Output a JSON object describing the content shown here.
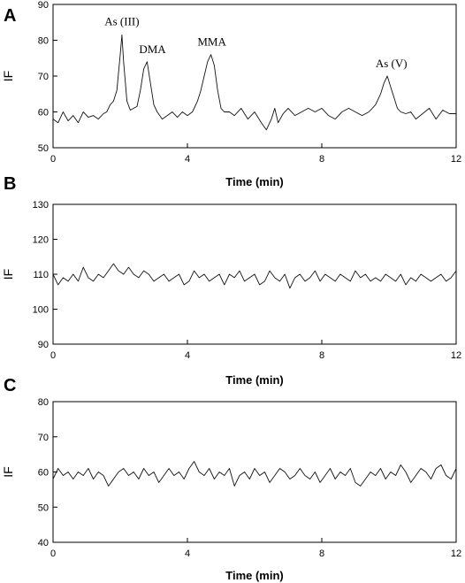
{
  "chart_data": [
    {
      "type": "line",
      "panel": "A",
      "xlabel": "Time (min)",
      "ylabel": "IF",
      "xlim": [
        0,
        12
      ],
      "ylim": [
        50,
        90
      ],
      "xticks": [
        0,
        4,
        8,
        12
      ],
      "yticks": [
        50,
        60,
        70,
        80,
        90
      ],
      "grid": false,
      "annotations": [
        {
          "text": "As (III)",
          "x": 2.05,
          "y": 81.5
        },
        {
          "text": "DMA",
          "x": 2.75,
          "y": 74
        },
        {
          "text": "MMA",
          "x": 4.7,
          "y": 76
        },
        {
          "text": "As (V)",
          "x": 10.15,
          "y": 70
        }
      ],
      "series": [
        {
          "x": [
            0,
            0.15,
            0.3,
            0.45,
            0.6,
            0.75,
            0.9,
            1.05,
            1.2,
            1.35,
            1.5,
            1.6,
            1.7,
            1.8,
            1.9,
            2.0,
            2.05,
            2.1,
            2.2,
            2.3,
            2.4,
            2.5,
            2.6,
            2.7,
            2.8,
            2.9,
            3.0,
            3.1,
            3.25,
            3.4,
            3.55,
            3.7,
            3.85,
            4.0,
            4.15,
            4.3,
            4.4,
            4.5,
            4.6,
            4.7,
            4.8,
            4.9,
            5.0,
            5.1,
            5.25,
            5.4,
            5.6,
            5.8,
            6.0,
            6.2,
            6.35,
            6.5,
            6.6,
            6.7,
            6.85,
            7.0,
            7.2,
            7.4,
            7.6,
            7.8,
            8.0,
            8.2,
            8.4,
            8.6,
            8.8,
            9.0,
            9.2,
            9.4,
            9.6,
            9.75,
            9.85,
            9.95,
            10.05,
            10.15,
            10.25,
            10.35,
            10.5,
            10.65,
            10.8,
            11.0,
            11.2,
            11.4,
            11.6,
            11.8,
            12.0
          ],
          "y": [
            58,
            57,
            60,
            57.5,
            59,
            57,
            60,
            58.5,
            59,
            58,
            59.5,
            60,
            62,
            63,
            66,
            76,
            81.5,
            74,
            63,
            60.5,
            61,
            61.5,
            66,
            72,
            74,
            68,
            62,
            60,
            58,
            59,
            60,
            58.5,
            60,
            59,
            60,
            63,
            66,
            70,
            74,
            76,
            73,
            66,
            61,
            60,
            60,
            59,
            61,
            58,
            60,
            57,
            55,
            58,
            61,
            57,
            59.5,
            61,
            59,
            60,
            61,
            60,
            61,
            59,
            58,
            60,
            61,
            60,
            59,
            60,
            62,
            65,
            68,
            70,
            67,
            64,
            61,
            60,
            59.5,
            60,
            58,
            59.5,
            61,
            58,
            60.5,
            59.5,
            59.5
          ]
        }
      ]
    },
    {
      "type": "line",
      "panel": "B",
      "xlabel": "Time (min)",
      "ylabel": "IF",
      "xlim": [
        0,
        12
      ],
      "ylim": [
        90,
        130
      ],
      "xticks": [
        0,
        4,
        8,
        12
      ],
      "yticks": [
        90,
        100,
        110,
        120,
        130
      ],
      "grid": false,
      "series": [
        {
          "x": [
            0,
            0.15,
            0.3,
            0.45,
            0.6,
            0.75,
            0.9,
            1.05,
            1.2,
            1.35,
            1.5,
            1.65,
            1.8,
            1.95,
            2.1,
            2.25,
            2.4,
            2.55,
            2.7,
            2.85,
            3.0,
            3.15,
            3.3,
            3.45,
            3.6,
            3.75,
            3.9,
            4.05,
            4.2,
            4.35,
            4.5,
            4.65,
            4.8,
            4.95,
            5.1,
            5.25,
            5.4,
            5.55,
            5.7,
            5.85,
            6.0,
            6.15,
            6.3,
            6.45,
            6.6,
            6.75,
            6.9,
            7.05,
            7.2,
            7.35,
            7.5,
            7.65,
            7.8,
            7.95,
            8.1,
            8.25,
            8.4,
            8.55,
            8.7,
            8.85,
            9.0,
            9.15,
            9.3,
            9.45,
            9.6,
            9.75,
            9.9,
            10.05,
            10.2,
            10.35,
            10.5,
            10.65,
            10.8,
            10.95,
            11.1,
            11.25,
            11.4,
            11.55,
            11.7,
            11.85,
            12.0
          ],
          "y": [
            110,
            107,
            109,
            108,
            110,
            108,
            112,
            109,
            108,
            110,
            109,
            111,
            113,
            111,
            110,
            112,
            110,
            109,
            111,
            110,
            108,
            109,
            110,
            108,
            109,
            110,
            107,
            108,
            111,
            109,
            110,
            108,
            109,
            110,
            107,
            110,
            109,
            111,
            108,
            109,
            110,
            107,
            108,
            111,
            109,
            108,
            110,
            106,
            109,
            110,
            108,
            109,
            111,
            108,
            110,
            109,
            108,
            110,
            109,
            108,
            111,
            109,
            110,
            108,
            109,
            108,
            110,
            109,
            108,
            110,
            107,
            109,
            108,
            110,
            109,
            108,
            109,
            110,
            108,
            109,
            111
          ]
        }
      ]
    },
    {
      "type": "line",
      "panel": "C",
      "xlabel": "Time (min)",
      "ylabel": "IF",
      "xlim": [
        0,
        12
      ],
      "ylim": [
        40,
        80
      ],
      "xticks": [
        0,
        4,
        8,
        12
      ],
      "yticks": [
        40,
        50,
        60,
        70,
        80
      ],
      "grid": false,
      "series": [
        {
          "x": [
            0,
            0.15,
            0.3,
            0.45,
            0.6,
            0.75,
            0.9,
            1.05,
            1.2,
            1.35,
            1.5,
            1.65,
            1.8,
            1.95,
            2.1,
            2.25,
            2.4,
            2.55,
            2.7,
            2.85,
            3.0,
            3.15,
            3.3,
            3.45,
            3.6,
            3.75,
            3.9,
            4.05,
            4.2,
            4.35,
            4.5,
            4.65,
            4.8,
            4.95,
            5.1,
            5.25,
            5.4,
            5.55,
            5.7,
            5.85,
            6.0,
            6.15,
            6.3,
            6.45,
            6.6,
            6.75,
            6.9,
            7.05,
            7.2,
            7.35,
            7.5,
            7.65,
            7.8,
            7.95,
            8.1,
            8.25,
            8.4,
            8.55,
            8.7,
            8.85,
            9.0,
            9.15,
            9.3,
            9.45,
            9.6,
            9.75,
            9.9,
            10.05,
            10.2,
            10.35,
            10.5,
            10.65,
            10.8,
            10.95,
            11.1,
            11.25,
            11.4,
            11.55,
            11.7,
            11.85,
            12.0
          ],
          "y": [
            58,
            61,
            59,
            60,
            58,
            60,
            59,
            61,
            58,
            60,
            59,
            56,
            58,
            60,
            61,
            59,
            60,
            58,
            61,
            59,
            60,
            57,
            59,
            61,
            59,
            60,
            58,
            61,
            63,
            60,
            59,
            61,
            58,
            60,
            59,
            61,
            56,
            59,
            60,
            58,
            61,
            59,
            60,
            57,
            59,
            61,
            60,
            58,
            59,
            61,
            59,
            58,
            60,
            57,
            59,
            61,
            58,
            60,
            59,
            61,
            57,
            56,
            58,
            60,
            59,
            61,
            58,
            60,
            59,
            62,
            60,
            57,
            59,
            61,
            60,
            58,
            61,
            62,
            59,
            58,
            61
          ]
        }
      ]
    }
  ]
}
